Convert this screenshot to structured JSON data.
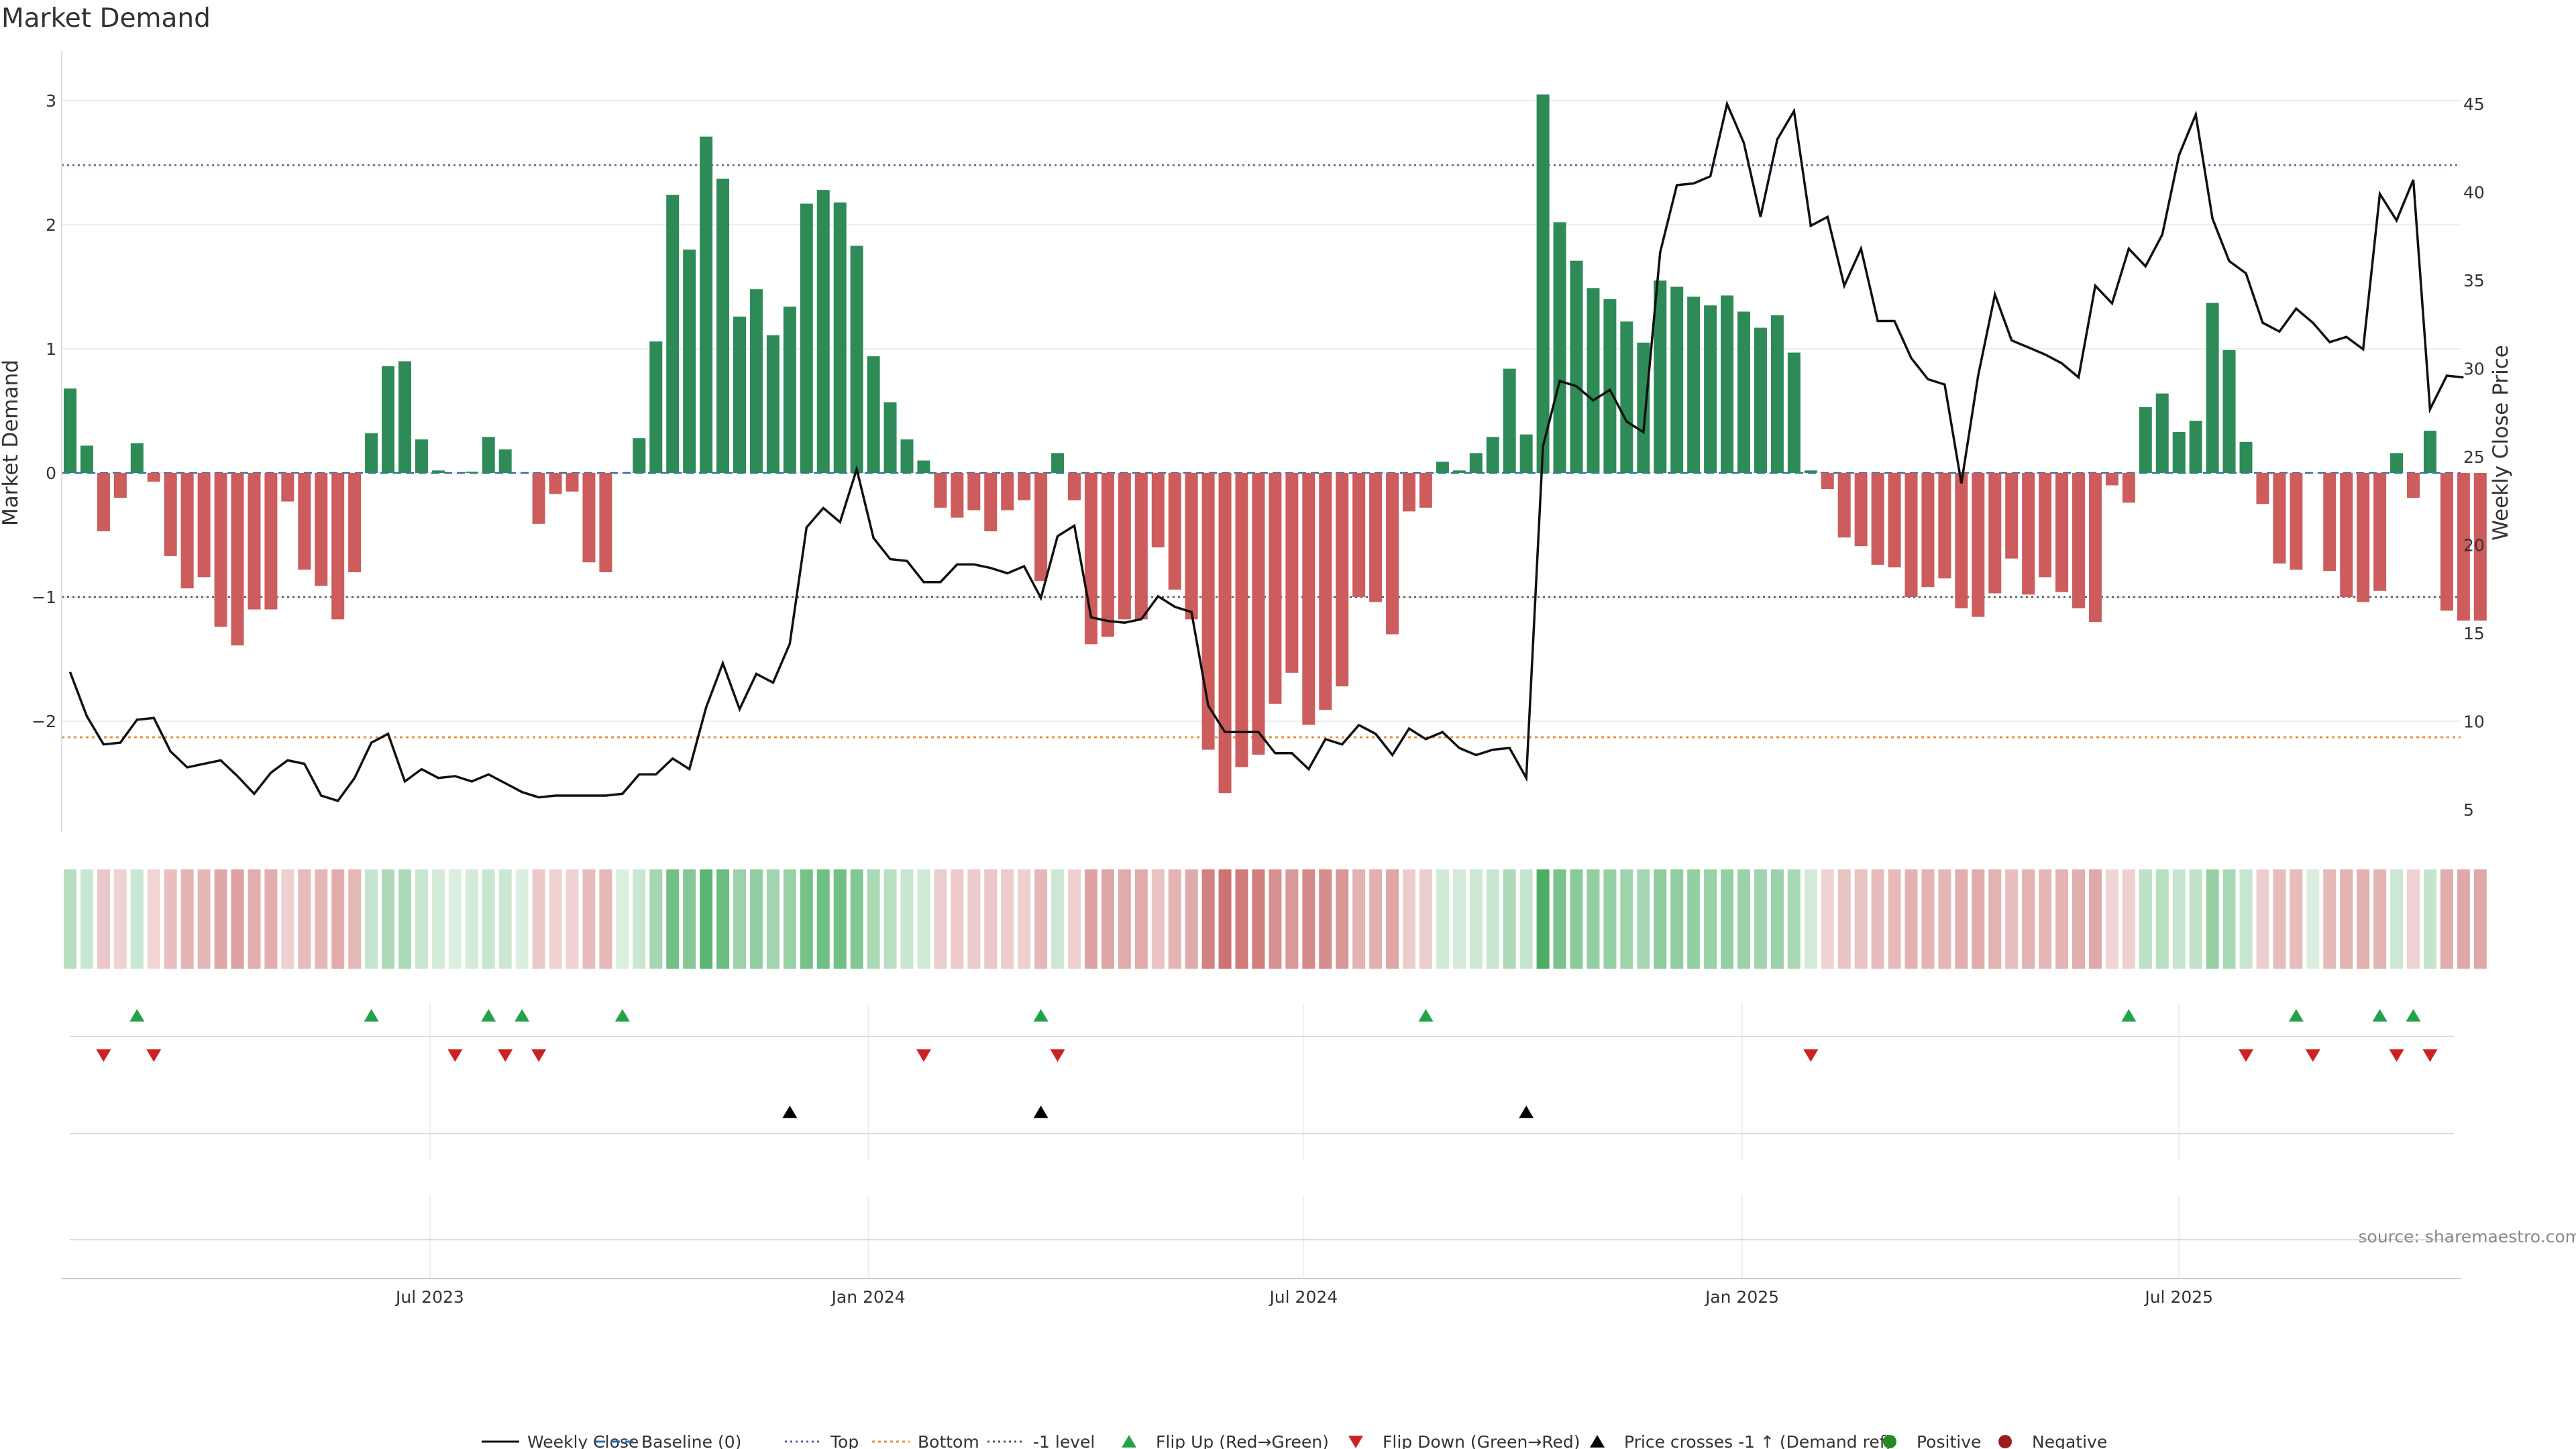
{
  "chart_data": {
    "type": "bar",
    "title": "Market Demand",
    "ylabel_left": "Market Demand",
    "ylabel_right": "Weekly Close Price",
    "ylim_left": [
      -2.9,
      3.4
    ],
    "ylim_right": [
      3.5,
      48
    ],
    "yticks_left": [
      3,
      2,
      1,
      0,
      -1,
      -2
    ],
    "yticks_left_labels": [
      "3",
      "2",
      "1",
      "0",
      "−1",
      "−2"
    ],
    "yticks_right": [
      45,
      40,
      35,
      30,
      25,
      20,
      15,
      10,
      5
    ],
    "x_tick_labels": [
      "Jul 2023",
      "Jan 2024",
      "Jul 2024",
      "Jan 2025",
      "Jul 2025"
    ],
    "x_tick_weeks": [
      21.5,
      47.7,
      73.7,
      99.9,
      126.0
    ],
    "levels": {
      "top": 2.48,
      "bottom": -2.13,
      "minus_one": -1.0,
      "baseline": 0
    },
    "demand": [
      0.68,
      0.22,
      -0.47,
      -0.2,
      0.24,
      -0.07,
      -0.67,
      -0.93,
      -0.84,
      -1.24,
      -1.39,
      -1.1,
      -1.1,
      -0.23,
      -0.78,
      -0.91,
      -1.18,
      -0.8,
      0.32,
      0.86,
      0.9,
      0.27,
      0.02,
      0.0,
      0.01,
      0.29,
      0.19,
      0.0,
      -0.41,
      -0.17,
      -0.15,
      -0.72,
      -0.8,
      0.0,
      0.28,
      1.06,
      2.24,
      1.8,
      2.71,
      2.37,
      1.26,
      1.48,
      1.11,
      1.34,
      2.17,
      2.28,
      2.18,
      1.83,
      0.94,
      0.57,
      0.27,
      0.1,
      -0.28,
      -0.36,
      -0.3,
      -0.47,
      -0.3,
      -0.22,
      -0.87,
      0.16,
      -0.22,
      -1.38,
      -1.32,
      -1.18,
      -1.18,
      -0.6,
      -0.94,
      -1.18,
      -2.23,
      -2.58,
      -2.37,
      -2.27,
      -1.86,
      -1.61,
      -2.03,
      -1.91,
      -1.72,
      -1.0,
      -1.04,
      -1.3,
      -0.31,
      -0.28,
      0.09,
      0.02,
      0.16,
      0.29,
      0.84,
      0.31,
      3.05,
      2.02,
      1.71,
      1.49,
      1.4,
      1.22,
      1.05,
      1.55,
      1.5,
      1.42,
      1.35,
      1.43,
      1.3,
      1.17,
      1.27,
      0.97,
      0.02,
      -0.13,
      -0.52,
      -0.59,
      -0.74,
      -0.76,
      -1.0,
      -0.92,
      -0.85,
      -1.09,
      -1.16,
      -0.97,
      -0.69,
      -0.98,
      -0.84,
      -0.96,
      -1.09,
      -1.2,
      -0.1,
      -0.24,
      0.53,
      0.64,
      0.33,
      0.42,
      1.37,
      0.99,
      0.25,
      -0.25,
      -0.73,
      -0.78,
      0.0,
      -0.79,
      -1.0,
      -1.04,
      -0.95,
      0.16,
      -0.2,
      0.34,
      -1.11,
      -1.19,
      -1.19
    ],
    "weekly_close": [
      12.8,
      10.3,
      8.7,
      8.8,
      10.1,
      10.2,
      8.3,
      7.4,
      7.6,
      7.8,
      6.9,
      5.9,
      7.1,
      7.8,
      7.6,
      5.8,
      5.5,
      6.8,
      8.8,
      9.3,
      6.6,
      7.3,
      6.8,
      6.9,
      6.6,
      7.0,
      6.5,
      6.0,
      5.7,
      5.8,
      5.8,
      5.8,
      5.8,
      5.9,
      7.0,
      7.0,
      7.9,
      7.3,
      10.8,
      13.3,
      10.7,
      12.7,
      12.2,
      14.4,
      21.0,
      22.1,
      21.3,
      24.3,
      20.4,
      19.2,
      19.1,
      17.9,
      17.9,
      18.9,
      18.9,
      18.7,
      18.4,
      18.8,
      17.0,
      20.5,
      21.1,
      15.9,
      15.7,
      15.6,
      15.8,
      17.1,
      16.5,
      16.2,
      10.9,
      9.4,
      9.4,
      9.4,
      8.2,
      8.2,
      7.3,
      9.0,
      8.7,
      9.8,
      9.3,
      8.1,
      9.6,
      9.0,
      9.4,
      8.5,
      8.1,
      8.4,
      8.5,
      6.8,
      25.6,
      29.3,
      29.0,
      28.2,
      28.8,
      27.0,
      26.4,
      36.6,
      40.4,
      40.5,
      40.9,
      45.0,
      42.8,
      38.6,
      43.0,
      44.6,
      38.1,
      38.6,
      34.7,
      36.8,
      32.7,
      32.7,
      30.6,
      29.4,
      29.1,
      23.5,
      29.6,
      34.2,
      31.6,
      31.2,
      30.8,
      30.3,
      29.5,
      34.7,
      33.7,
      36.8,
      35.8,
      37.6,
      42.1,
      44.4,
      38.5,
      36.1,
      35.4,
      32.6,
      32.1,
      33.4,
      32.6,
      31.5,
      31.8,
      31.1,
      39.9,
      38.4,
      40.7,
      27.7,
      29.6,
      29.5
    ],
    "flip_up_weeks": [
      4,
      18,
      25,
      27,
      33,
      58,
      81,
      123,
      133,
      138,
      140
    ],
    "flip_down_weeks": [
      2,
      5,
      23,
      26,
      28,
      51,
      59,
      104,
      130,
      134,
      139,
      141
    ],
    "price_cross_weeks": [
      43,
      58,
      87
    ],
    "legend": [
      "Weekly Close",
      "Baseline (0)",
      "Top",
      "Bottom",
      "-1 level",
      "Flip Up (Red→Green)",
      "Flip Down (Green→Red)",
      "Price crosses -1 ↑ (Demand ref)",
      "Positive",
      "Negative"
    ],
    "source": "source: sharemaestro.com"
  },
  "colors": {
    "positive": "#2e8b57",
    "negative": "#cd5c5c",
    "price_line": "#111111",
    "top_line": "#5b5f9e",
    "bottom_line": "#e8903c",
    "minus_one_line": "#555555",
    "baseline": "#2a6db0",
    "flip_up": "#22a34a",
    "flip_down": "#cc2222",
    "cross": "#000000",
    "legend_positive": "#228b22",
    "legend_negative": "#a01c1c"
  }
}
